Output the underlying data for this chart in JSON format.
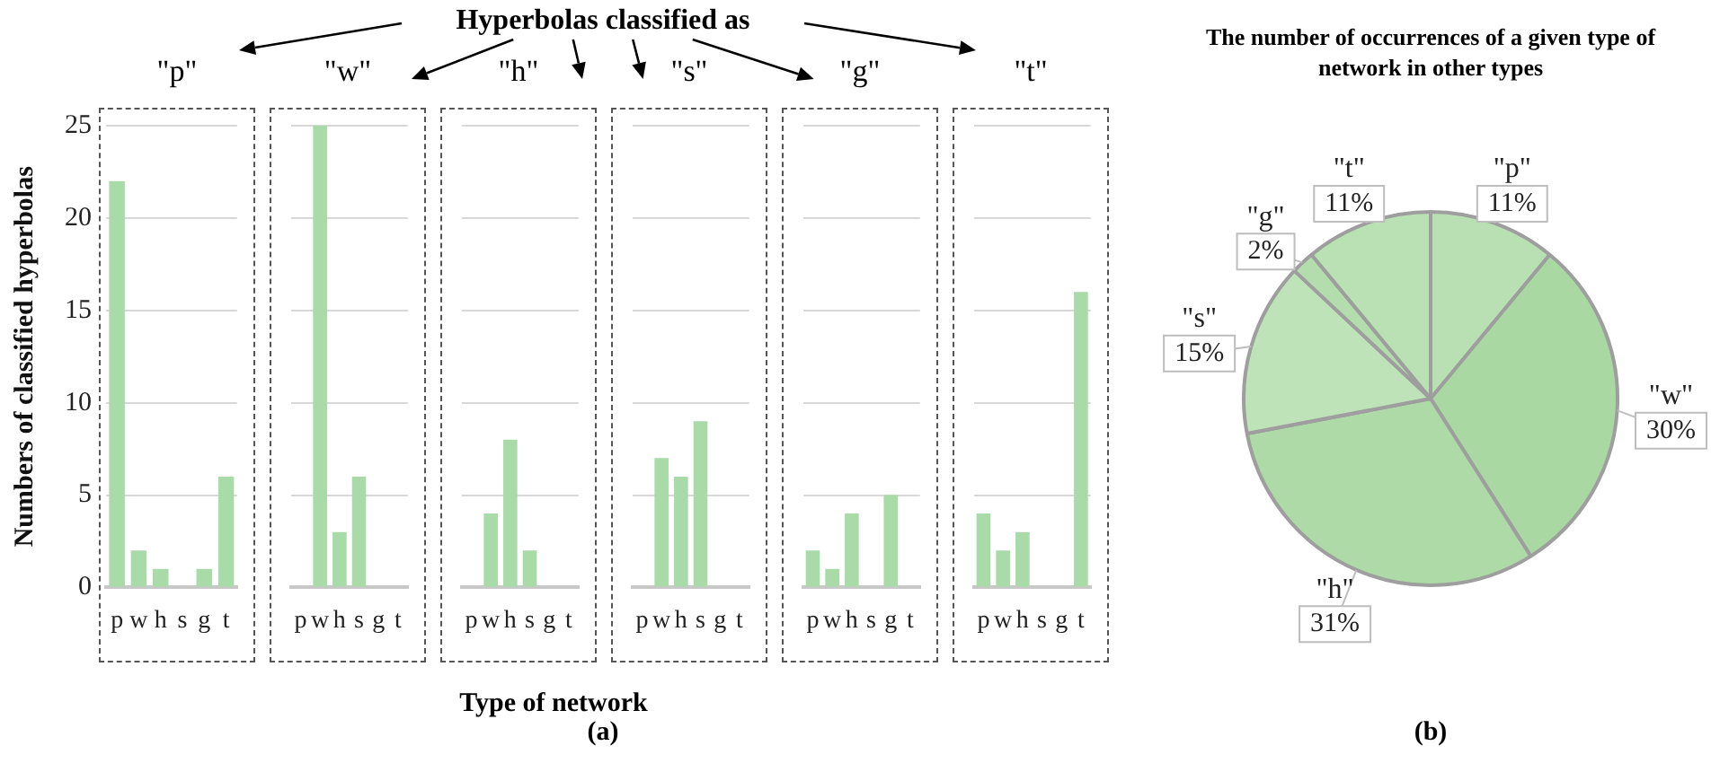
{
  "chart_data": [
    {
      "type": "bar",
      "title": "\"p\"",
      "ylabel": "Numbers of classified hyperbolas",
      "annotations": [
        "Hyperbolas classified as",
        "(a)"
      ],
      "categories": [
        "p",
        "w",
        "h",
        "s",
        "g",
        "t"
      ],
      "values": [
        22,
        2,
        1,
        0,
        1,
        6
      ],
      "color": "#a8dba8",
      "ylim": [
        0,
        25
      ],
      "yticks": [
        0,
        5,
        10,
        15,
        20,
        25
      ],
      "grid": "y"
    },
    {
      "type": "bar",
      "title": "\"w\"",
      "categories": [
        "p",
        "w",
        "h",
        "s",
        "g",
        "t"
      ],
      "values": [
        0,
        25,
        3,
        6,
        0,
        0
      ],
      "color": "#a8dba8",
      "ylim": [
        0,
        25
      ],
      "yticks": [
        0,
        5,
        10,
        15,
        20,
        25
      ],
      "grid": "y",
      "tick_labels": "x"
    },
    {
      "type": "bar",
      "title": "\"h\"",
      "xlabel": "Type of network",
      "categories": [
        "p",
        "w",
        "h",
        "s",
        "g",
        "t"
      ],
      "values": [
        0,
        4,
        8,
        2,
        0,
        0
      ],
      "color": "#a8dba8",
      "ylim": [
        0,
        25
      ],
      "yticks": [
        0,
        5,
        10,
        15,
        20,
        25
      ],
      "grid": "y",
      "tick_labels": "x"
    },
    {
      "type": "bar",
      "title": "\"s\"",
      "categories": [
        "p",
        "w",
        "h",
        "s",
        "g",
        "t"
      ],
      "values": [
        0,
        7,
        6,
        9,
        0,
        0
      ],
      "color": "#a8dba8",
      "ylim": [
        0,
        25
      ],
      "yticks": [
        0,
        5,
        10,
        15,
        20,
        25
      ],
      "grid": "y",
      "tick_labels": "x"
    },
    {
      "type": "bar",
      "title": "\"g\"",
      "categories": [
        "p",
        "w",
        "h",
        "s",
        "g",
        "t"
      ],
      "values": [
        2,
        1,
        4,
        0,
        5,
        0
      ],
      "color": "#a8dba8",
      "ylim": [
        0,
        25
      ],
      "yticks": [
        0,
        5,
        10,
        15,
        20,
        25
      ],
      "grid": "y",
      "tick_labels": "x"
    },
    {
      "type": "bar",
      "title": "\"t\"",
      "categories": [
        "p",
        "w",
        "h",
        "s",
        "g",
        "t"
      ],
      "values": [
        4,
        2,
        3,
        0,
        0,
        16
      ],
      "color": "#a8dba8",
      "ylim": [
        0,
        25
      ],
      "yticks": [
        0,
        5,
        10,
        15,
        20,
        25
      ],
      "grid": "y",
      "tick_labels": "x"
    },
    {
      "type": "pie",
      "title": "The number of occurrences of a given type of network in other types",
      "categories": [
        "\"p\"",
        "\"w\"",
        "\"h\"",
        "\"s\"",
        "\"g\"",
        "\"t\""
      ],
      "values": [
        11,
        30,
        31,
        15,
        2,
        11
      ],
      "value_labels": [
        "11%",
        "30%",
        "31%",
        "15%",
        "2%",
        "11%"
      ],
      "colors": [
        "#b8e0b2",
        "#a9d8a3",
        "#addaa7",
        "#bfe3b9",
        "#b3ddad",
        "#b9e1b3"
      ],
      "annotations": [
        "(b)"
      ]
    }
  ]
}
